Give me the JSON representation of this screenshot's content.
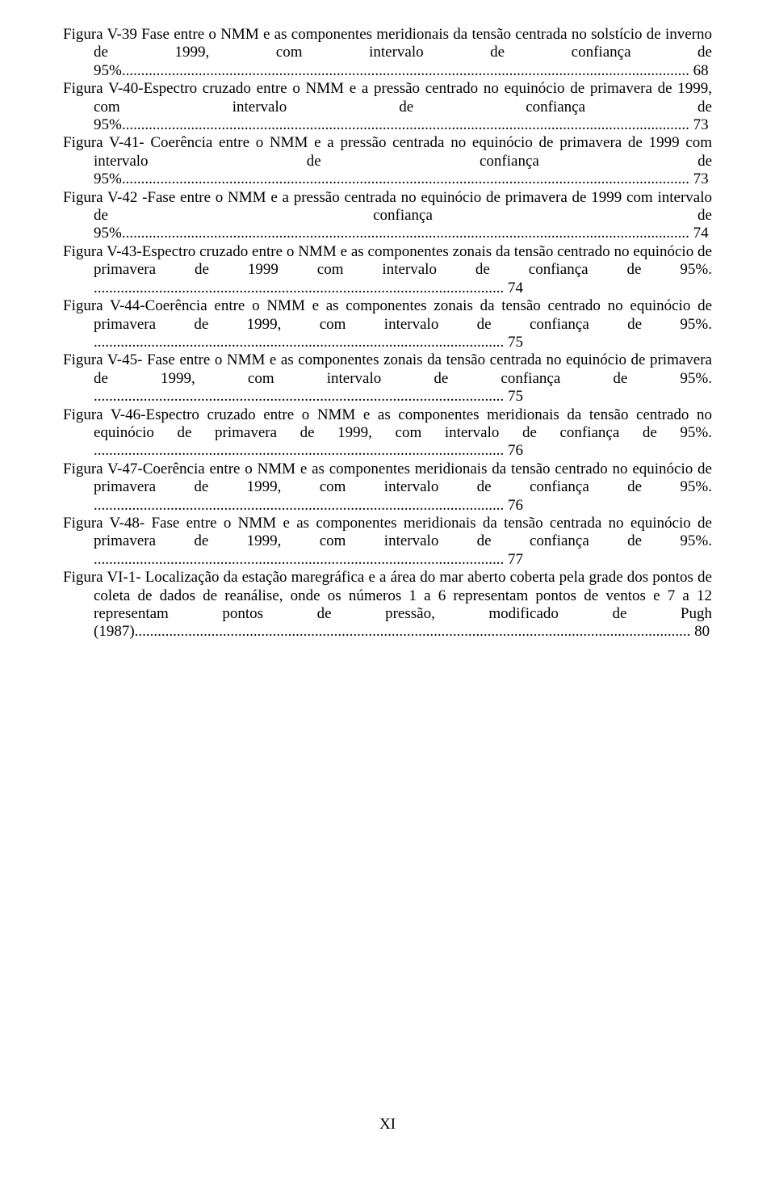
{
  "page_number": "XI",
  "font": {
    "family": "Times New Roman",
    "size_pt": 12,
    "color": "#000000"
  },
  "background_color": "#ffffff",
  "entries": [
    {
      "text": "Figura V-39 Fase entre o NMM e as componentes meridionais da tensão centrada no solstício de inverno de 1999, com intervalo de confiança de 95%.",
      "page": "68"
    },
    {
      "text": "Figura V-40-Espectro cruzado entre o NMM e a pressão centrado no equinócio de primavera de 1999, com intervalo de confiança de 95%.",
      "page": "73"
    },
    {
      "text": "Figura V-41- Coerência entre o NMM e a pressão centrada no equinócio de primavera de 1999 com intervalo de confiança de 95%.",
      "page": "73"
    },
    {
      "text": "Figura V-42 -Fase entre o NMM e a pressão centrada no equinócio de primavera de 1999 com intervalo de confiança de 95%.",
      "page": "74"
    },
    {
      "text": "Figura V-43-Espectro cruzado entre o NMM e as componentes zonais da tensão centrado no equinócio de primavera de 1999 com intervalo de confiança de 95%. ",
      "page": "74"
    },
    {
      "text": "Figura V-44-Coerência entre o NMM e as componentes zonais da tensão centrado no equinócio de primavera de 1999, com intervalo de confiança de 95%. ",
      "page": "75"
    },
    {
      "text": "Figura V-45- Fase entre o NMM e as componentes zonais da tensão centrada no equinócio de primavera de 1999, com intervalo de confiança de 95%. ",
      "page": "75"
    },
    {
      "text": "Figura V-46-Espectro cruzado entre o NMM e as componentes meridionais da tensão centrado no equinócio de primavera de 1999,  com intervalo de confiança de 95%. ",
      "page": "76"
    },
    {
      "text": "Figura V-47-Coerência entre o NMM e as componentes meridionais da tensão centrado no equinócio de primavera de 1999, com intervalo de confiança de 95%. ",
      "page": "76"
    },
    {
      "text": "Figura V-48- Fase entre o NMM e as componentes meridionais da tensão centrada no equinócio de primavera de 1999, com intervalo de confiança de 95%. ",
      "page": "77"
    },
    {
      "text": "Figura VI-1- Localização da estação maregráfica e a área do mar aberto coberta pela grade dos pontos de coleta de dados de reanálise, onde os números 1 a 6 representam pontos de ventos e 7 a 12 representam pontos de pressão, modificado de Pugh (1987).",
      "page": "80"
    }
  ]
}
